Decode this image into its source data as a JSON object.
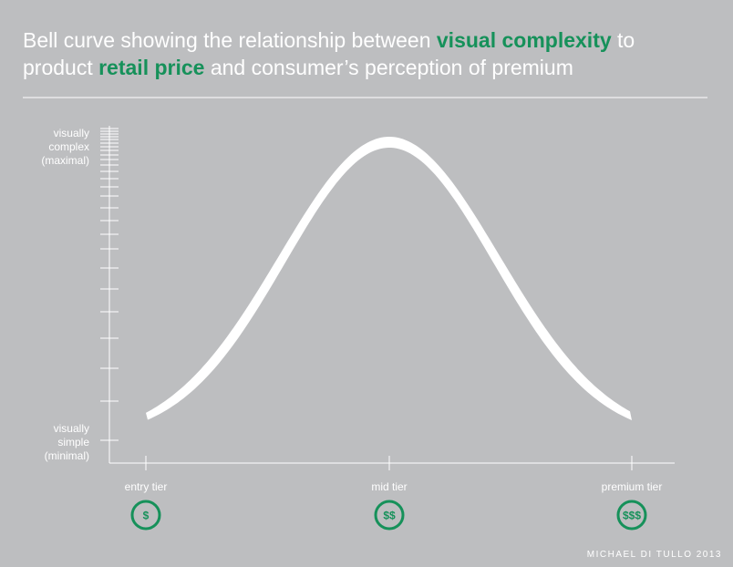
{
  "title": {
    "line1": [
      "Bell curve showing the relationship between ",
      "visual complexity",
      " to"
    ],
    "line2": [
      "product ",
      "retail price",
      " and consumer’s perception of premium"
    ]
  },
  "y_axis": {
    "top": [
      "visually",
      "complex",
      "(maximal)"
    ],
    "bottom": [
      "visually",
      "simple",
      "(minimal)"
    ]
  },
  "tiers": [
    {
      "label": "entry tier",
      "price": "$"
    },
    {
      "label": "mid tier",
      "price": "$$"
    },
    {
      "label": "premium tier",
      "price": "$$$"
    }
  ],
  "credit": "MICHAEL DI TULLO 2013"
}
